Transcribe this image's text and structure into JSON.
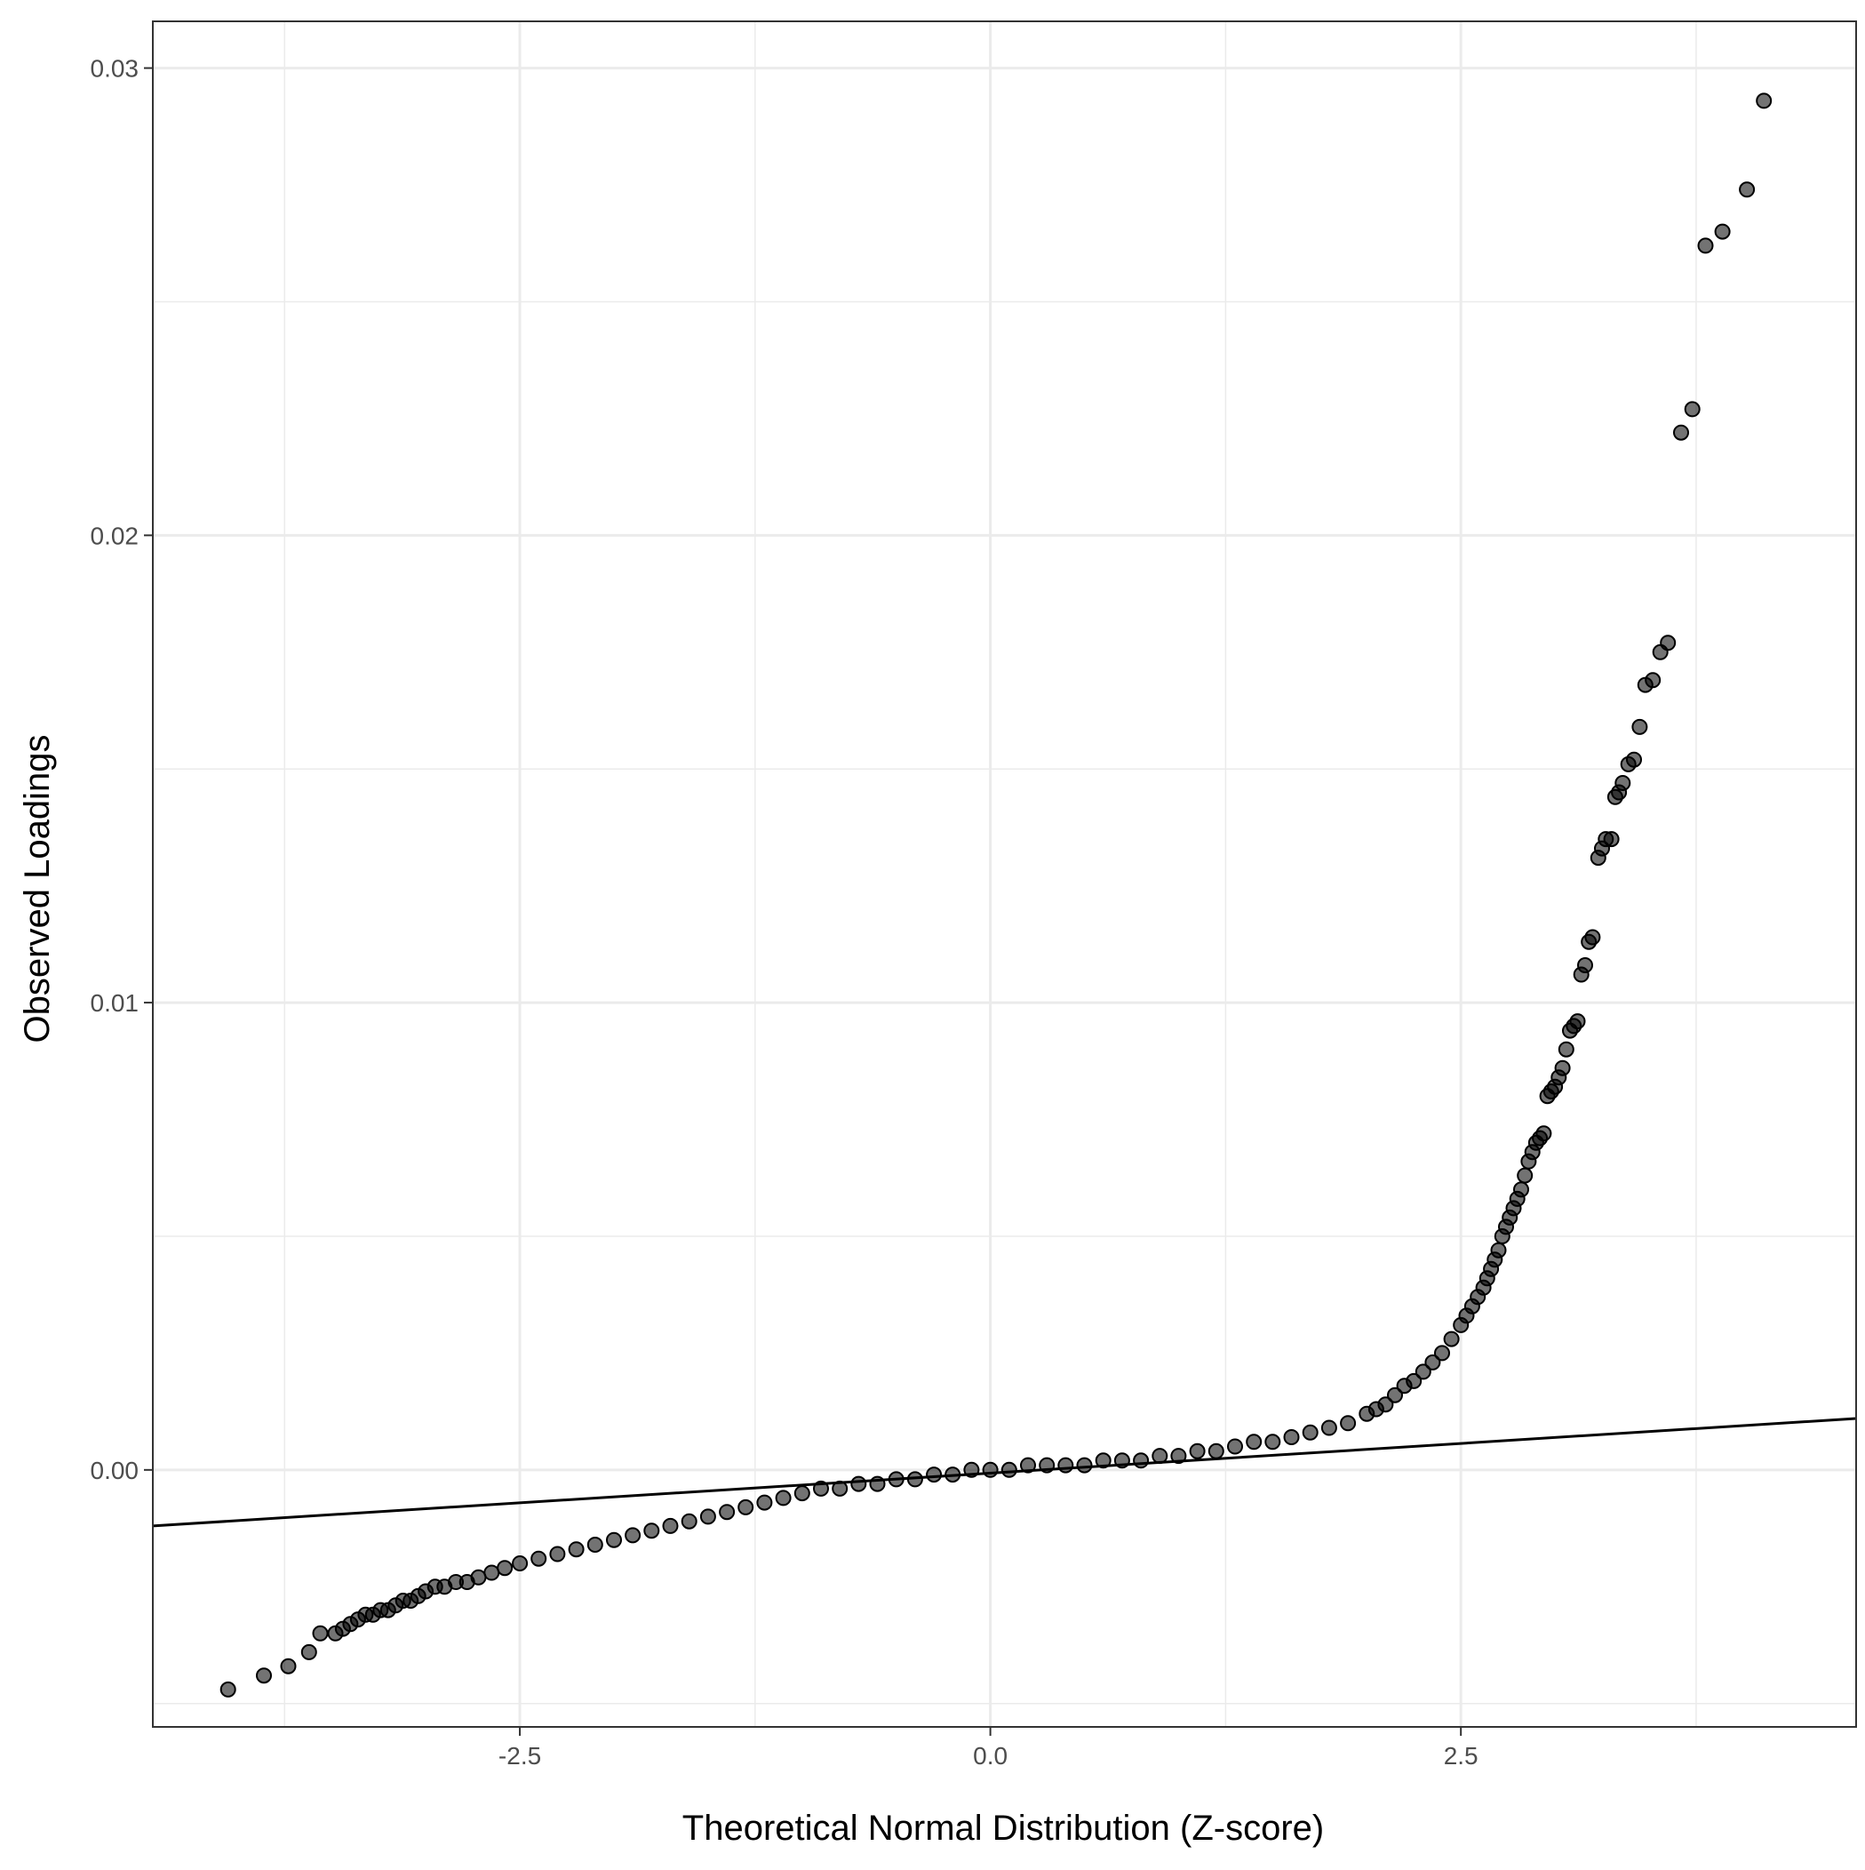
{
  "chart_data": {
    "type": "scatter",
    "title": "",
    "xlabel": "Theoretical Normal Distribution (Z-score)",
    "ylabel": "Observed Loadings",
    "xlim": [
      -4.45,
      4.6
    ],
    "ylim": [
      -0.0055,
      0.031
    ],
    "x_ticks": [
      -2.5,
      0.0,
      2.5
    ],
    "x_tick_labels": [
      "-2.5",
      "0.0",
      "2.5"
    ],
    "y_ticks": [
      0.0,
      0.01,
      0.02,
      0.03
    ],
    "y_tick_labels": [
      "0.00",
      "0.01",
      "0.02",
      "0.03"
    ],
    "x_minor_ticks": [
      -3.75,
      -1.25,
      1.25,
      3.75
    ],
    "y_minor_ticks": [
      -0.005,
      0.005,
      0.015,
      0.025
    ],
    "grid": true,
    "legend": "none",
    "point_color": "#000000",
    "point_opacity": 0.55,
    "series": [
      {
        "values": [
          [
            -4.05,
            -0.0047
          ],
          [
            -3.86,
            -0.0044
          ],
          [
            -3.73,
            -0.0042
          ],
          [
            -3.62,
            -0.0039
          ],
          [
            -3.56,
            -0.0035
          ],
          [
            -3.48,
            -0.0035
          ],
          [
            -3.44,
            -0.0034
          ],
          [
            -3.4,
            -0.0033
          ],
          [
            -3.36,
            -0.0032
          ],
          [
            -3.32,
            -0.0031
          ],
          [
            -3.28,
            -0.0031
          ],
          [
            -3.24,
            -0.003
          ],
          [
            -3.2,
            -0.003
          ],
          [
            -3.16,
            -0.0029
          ],
          [
            -3.12,
            -0.0028
          ],
          [
            -3.08,
            -0.0028
          ],
          [
            -3.04,
            -0.0027
          ],
          [
            -3.0,
            -0.0026
          ],
          [
            -2.95,
            -0.0025
          ],
          [
            -2.9,
            -0.0025
          ],
          [
            -2.84,
            -0.0024
          ],
          [
            -2.78,
            -0.0024
          ],
          [
            -2.72,
            -0.0023
          ],
          [
            -2.65,
            -0.0022
          ],
          [
            -2.58,
            -0.0021
          ],
          [
            -2.5,
            -0.002
          ],
          [
            -2.4,
            -0.0019
          ],
          [
            -2.3,
            -0.0018
          ],
          [
            -2.2,
            -0.0017
          ],
          [
            -2.1,
            -0.0016
          ],
          [
            -2.0,
            -0.0015
          ],
          [
            -1.9,
            -0.0014
          ],
          [
            -1.8,
            -0.0013
          ],
          [
            -1.7,
            -0.0012
          ],
          [
            -1.6,
            -0.0011
          ],
          [
            -1.5,
            -0.001
          ],
          [
            -1.4,
            -0.0009
          ],
          [
            -1.3,
            -0.0008
          ],
          [
            -1.2,
            -0.0007
          ],
          [
            -1.1,
            -0.0006
          ],
          [
            -1.0,
            -0.0005
          ],
          [
            -0.9,
            -0.0004
          ],
          [
            -0.8,
            -0.0004
          ],
          [
            -0.7,
            -0.0003
          ],
          [
            -0.6,
            -0.0003
          ],
          [
            -0.5,
            -0.0002
          ],
          [
            -0.4,
            -0.0002
          ],
          [
            -0.3,
            -0.0001
          ],
          [
            -0.2,
            -0.0001
          ],
          [
            -0.1,
            0.0
          ],
          [
            0.0,
            0.0
          ],
          [
            0.1,
            0.0
          ],
          [
            0.2,
            0.0001
          ],
          [
            0.3,
            0.0001
          ],
          [
            0.4,
            0.0001
          ],
          [
            0.5,
            0.0001
          ],
          [
            0.6,
            0.0002
          ],
          [
            0.7,
            0.0002
          ],
          [
            0.8,
            0.0002
          ],
          [
            0.9,
            0.0003
          ],
          [
            1.0,
            0.0003
          ],
          [
            1.1,
            0.0004
          ],
          [
            1.2,
            0.0004
          ],
          [
            1.3,
            0.0005
          ],
          [
            1.4,
            0.0006
          ],
          [
            1.5,
            0.0006
          ],
          [
            1.6,
            0.0007
          ],
          [
            1.7,
            0.0008
          ],
          [
            1.8,
            0.0009
          ],
          [
            1.9,
            0.001
          ],
          [
            2.0,
            0.0012
          ],
          [
            2.05,
            0.0013
          ],
          [
            2.1,
            0.0014
          ],
          [
            2.15,
            0.0016
          ],
          [
            2.2,
            0.0018
          ],
          [
            2.25,
            0.0019
          ],
          [
            2.3,
            0.0021
          ],
          [
            2.35,
            0.0023
          ],
          [
            2.4,
            0.0025
          ],
          [
            2.45,
            0.0028
          ],
          [
            2.5,
            0.0031
          ],
          [
            2.53,
            0.0033
          ],
          [
            2.56,
            0.0035
          ],
          [
            2.59,
            0.0037
          ],
          [
            2.62,
            0.0039
          ],
          [
            2.64,
            0.0041
          ],
          [
            2.66,
            0.0043
          ],
          [
            2.68,
            0.0045
          ],
          [
            2.7,
            0.0047
          ],
          [
            2.72,
            0.005
          ],
          [
            2.74,
            0.0052
          ],
          [
            2.76,
            0.0054
          ],
          [
            2.78,
            0.0056
          ],
          [
            2.8,
            0.0058
          ],
          [
            2.82,
            0.006
          ],
          [
            2.84,
            0.0063
          ],
          [
            2.86,
            0.0066
          ],
          [
            2.88,
            0.0068
          ],
          [
            2.9,
            0.007
          ],
          [
            2.92,
            0.0071
          ],
          [
            2.94,
            0.0072
          ],
          [
            2.96,
            0.008
          ],
          [
            2.98,
            0.0081
          ],
          [
            3.0,
            0.0082
          ],
          [
            3.02,
            0.0084
          ],
          [
            3.04,
            0.0086
          ],
          [
            3.06,
            0.009
          ],
          [
            3.08,
            0.0094
          ],
          [
            3.1,
            0.0095
          ],
          [
            3.12,
            0.0096
          ],
          [
            3.14,
            0.0106
          ],
          [
            3.16,
            0.0108
          ],
          [
            3.18,
            0.0113
          ],
          [
            3.2,
            0.0114
          ],
          [
            3.23,
            0.0131
          ],
          [
            3.25,
            0.0133
          ],
          [
            3.27,
            0.0135
          ],
          [
            3.3,
            0.0135
          ],
          [
            3.32,
            0.0144
          ],
          [
            3.34,
            0.0145
          ],
          [
            3.36,
            0.0147
          ],
          [
            3.39,
            0.0151
          ],
          [
            3.42,
            0.0152
          ],
          [
            3.45,
            0.0159
          ],
          [
            3.48,
            0.0168
          ],
          [
            3.52,
            0.0169
          ],
          [
            3.56,
            0.0175
          ],
          [
            3.6,
            0.0177
          ],
          [
            3.67,
            0.0222
          ],
          [
            3.73,
            0.0227
          ],
          [
            3.8,
            0.0262
          ],
          [
            3.89,
            0.0265
          ],
          [
            4.02,
            0.0274
          ],
          [
            4.11,
            0.0293
          ]
        ]
      }
    ],
    "reference_line": {
      "type": "line",
      "points": [
        [
          -4.45,
          -0.0012
        ],
        [
          4.6,
          0.0011
        ]
      ]
    }
  }
}
